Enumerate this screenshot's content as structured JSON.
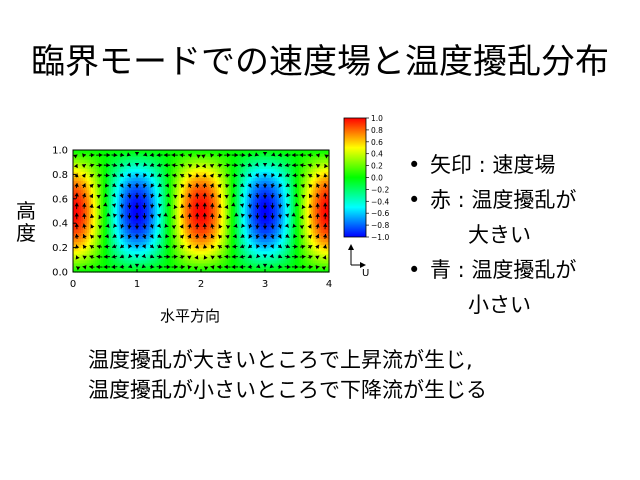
{
  "slide": {
    "title": "臨界モードでの速度場と温度擾乱分布",
    "bullets": [
      {
        "marker": "•",
        "lines": [
          "矢印 : 速度場"
        ]
      },
      {
        "marker": "•",
        "lines": [
          "赤 : 温度擾乱が",
          "大きい"
        ]
      },
      {
        "marker": "•",
        "lines": [
          "青 : 温度擾乱が",
          "小さい"
        ]
      }
    ],
    "caption": [
      "温度擾乱が大きいところで上昇流が生じ,",
      "温度擾乱が小さいところで下降流が生じる"
    ]
  },
  "chart_data": {
    "type": "heatmap",
    "xlabel": "水平方向",
    "ylabel": "高度",
    "xlim": [
      0,
      4
    ],
    "ylim": [
      0,
      1
    ],
    "xticks": [
      "0",
      "1",
      "2",
      "3",
      "4"
    ],
    "yticks": [
      "0.0",
      "0.2",
      "0.4",
      "0.6",
      "0.8",
      "1.0"
    ],
    "colorbar": {
      "range": [
        -1.0,
        1.0
      ],
      "ticks": [
        "1.0",
        "0.8",
        "0.6",
        "0.4",
        "0.2",
        "0.0",
        "−0.2",
        "−0.4",
        "−0.6",
        "−0.8",
        "−1.0"
      ]
    },
    "field": "cos(pi*x) * sin(pi*z) temperature perturbation with convective roll velocity arrows",
    "vector_key_label": "U",
    "grid": false,
    "colors": {
      "high": "#ff0000",
      "mid": "#00ff00",
      "low": "#0000ff"
    }
  }
}
